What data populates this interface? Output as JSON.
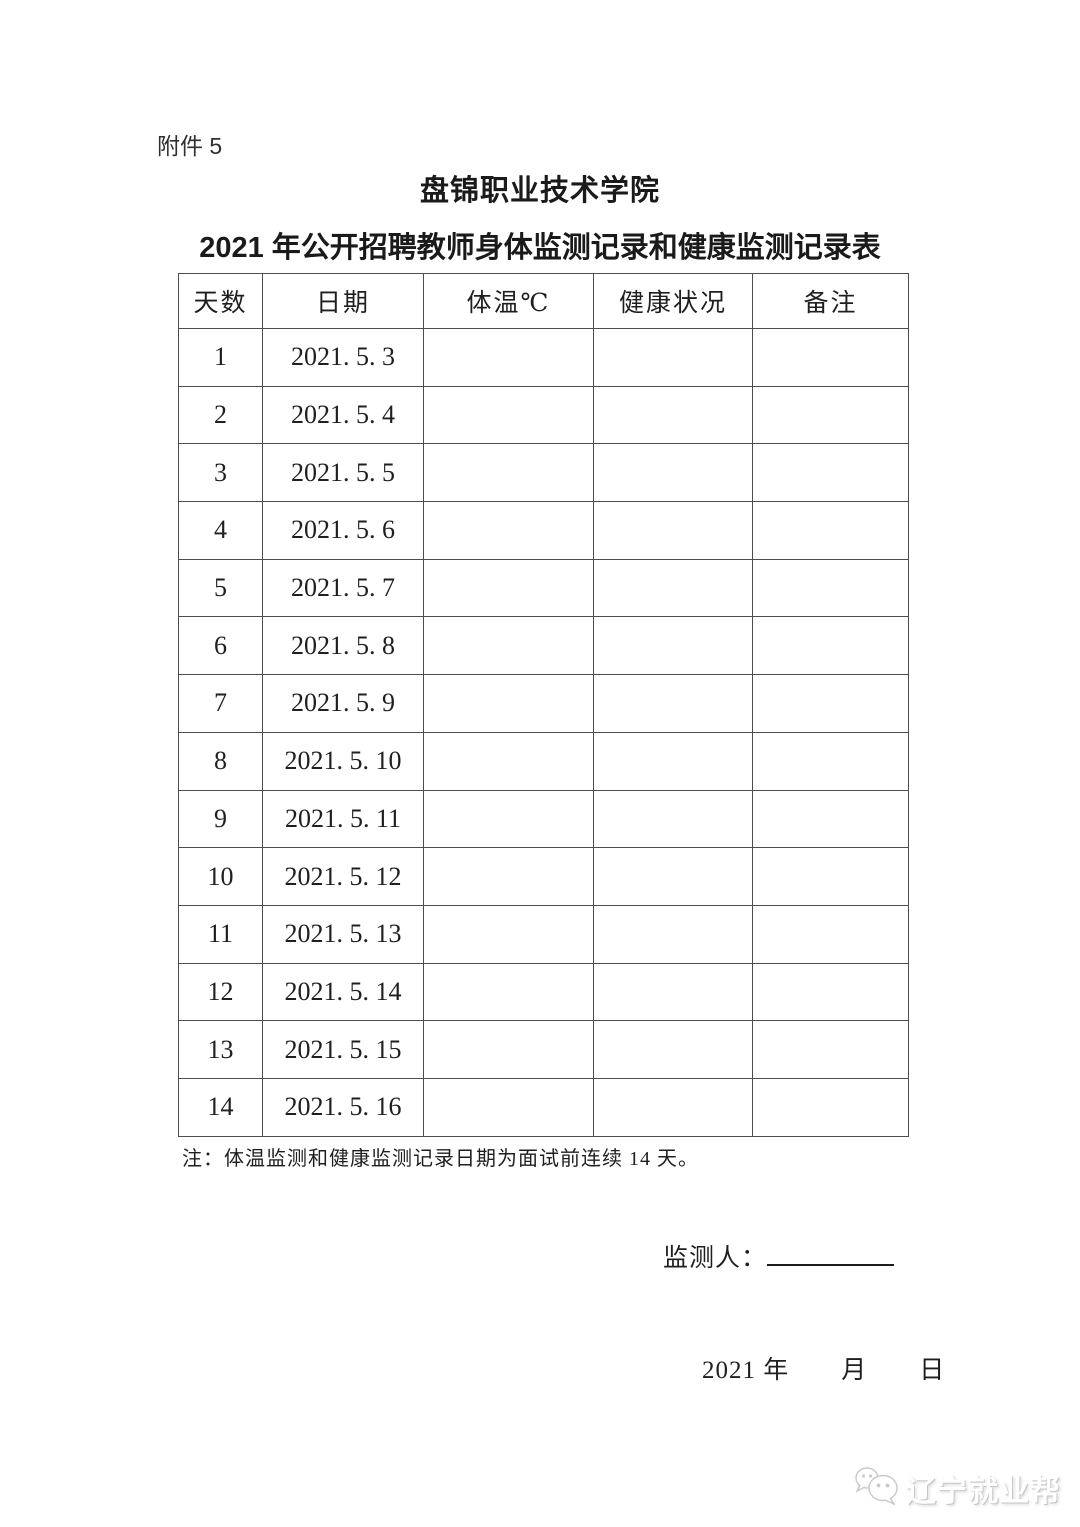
{
  "page": {
    "attachment_label": "附件 5",
    "title": "盘锦职业技术学院",
    "subtitle": "2021 年公开招聘教师身体监测记录和健康监测记录表"
  },
  "table": {
    "headers": [
      "天数",
      "日期",
      "体温℃",
      "健康状况",
      "备注"
    ],
    "column_keys": [
      "day",
      "date",
      "temperature",
      "health",
      "remark"
    ],
    "rows": [
      {
        "day": "1",
        "date": "2021. 5. 3",
        "temperature": "",
        "health": "",
        "remark": ""
      },
      {
        "day": "2",
        "date": "2021. 5. 4",
        "temperature": "",
        "health": "",
        "remark": ""
      },
      {
        "day": "3",
        "date": "2021. 5. 5",
        "temperature": "",
        "health": "",
        "remark": ""
      },
      {
        "day": "4",
        "date": "2021. 5. 6",
        "temperature": "",
        "health": "",
        "remark": ""
      },
      {
        "day": "5",
        "date": "2021. 5. 7",
        "temperature": "",
        "health": "",
        "remark": ""
      },
      {
        "day": "6",
        "date": "2021. 5. 8",
        "temperature": "",
        "health": "",
        "remark": ""
      },
      {
        "day": "7",
        "date": "2021. 5. 9",
        "temperature": "",
        "health": "",
        "remark": ""
      },
      {
        "day": "8",
        "date": "2021. 5. 10",
        "temperature": "",
        "health": "",
        "remark": ""
      },
      {
        "day": "9",
        "date": "2021. 5. 11",
        "temperature": "",
        "health": "",
        "remark": ""
      },
      {
        "day": "10",
        "date": "2021. 5. 12",
        "temperature": "",
        "health": "",
        "remark": ""
      },
      {
        "day": "11",
        "date": "2021. 5. 13",
        "temperature": "",
        "health": "",
        "remark": ""
      },
      {
        "day": "12",
        "date": "2021. 5. 14",
        "temperature": "",
        "health": "",
        "remark": ""
      },
      {
        "day": "13",
        "date": "2021. 5. 15",
        "temperature": "",
        "health": "",
        "remark": ""
      },
      {
        "day": "14",
        "date": "2021. 5. 16",
        "temperature": "",
        "health": "",
        "remark": ""
      }
    ]
  },
  "footer": {
    "note": "注：体温监测和健康监测记录日期为面试前连续 14 天。",
    "monitor_label": "监测人：",
    "date_line": "2021 年　　月　　日"
  },
  "watermark": {
    "text": "辽宁就业帮",
    "icon": "wechat-icon"
  },
  "colors": {
    "text": "#1f1f1f",
    "table_border": "#4d4d4d",
    "page_background": "#ffffff",
    "watermark_text": "#ffffff",
    "watermark_shadow": "#c6c6c6"
  }
}
